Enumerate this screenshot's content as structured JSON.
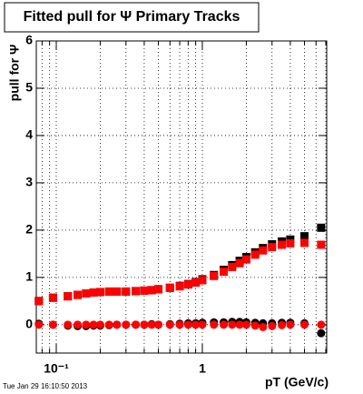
{
  "chart_data": {
    "type": "scatter",
    "title": "Fitted pull for Ψ  Primary Tracks",
    "ylabel": "pull for Ψ",
    "xlabel": "pT (GeV/c)",
    "timestamp": "Tue Jan 29 16:10:50 2013",
    "xlog": true,
    "grid": true,
    "xlim": [
      0.073,
      7.1
    ],
    "ylim": [
      -0.6,
      6
    ],
    "xticks": [
      {
        "value": 0.1,
        "label": "10⁻¹"
      },
      1
    ],
    "yticks": [
      0,
      1,
      2,
      3,
      4,
      5,
      6
    ],
    "x": [
      0.076,
      0.095,
      0.12,
      0.14,
      0.16,
      0.18,
      0.2,
      0.23,
      0.26,
      0.3,
      0.35,
      0.4,
      0.45,
      0.5,
      0.6,
      0.7,
      0.8,
      0.9,
      1.0,
      1.2,
      1.4,
      1.6,
      1.8,
      2.0,
      2.3,
      2.6,
      3.0,
      3.5,
      4.0,
      5.0,
      6.5
    ],
    "series": [
      {
        "color": "#000000",
        "marker": "square",
        "values": [
          0.5,
          0.57,
          0.6,
          0.63,
          0.66,
          0.68,
          0.69,
          0.7,
          0.7,
          0.7,
          0.71,
          0.72,
          0.73,
          0.75,
          0.78,
          0.82,
          0.86,
          0.9,
          0.96,
          1.05,
          1.16,
          1.26,
          1.35,
          1.43,
          1.53,
          1.62,
          1.7,
          1.76,
          1.8,
          1.87,
          2.05
        ]
      },
      {
        "color": "#ff0000",
        "marker": "square",
        "values": [
          0.5,
          0.57,
          0.6,
          0.63,
          0.66,
          0.68,
          0.69,
          0.7,
          0.7,
          0.7,
          0.71,
          0.72,
          0.73,
          0.75,
          0.78,
          0.81,
          0.85,
          0.89,
          0.94,
          1.03,
          1.12,
          1.22,
          1.3,
          1.38,
          1.48,
          1.57,
          1.64,
          1.69,
          1.72,
          1.73,
          1.69
        ]
      },
      {
        "color": "#000000",
        "marker": "circle",
        "values": [
          0.02,
          0,
          -0.02,
          -0.03,
          -0.03,
          -0.02,
          -0.02,
          -0.01,
          0,
          0,
          0,
          0,
          0.01,
          0,
          0.01,
          0.02,
          0.03,
          0.03,
          0.04,
          0.05,
          0.05,
          0.06,
          0.06,
          0.05,
          0.04,
          0.03,
          0.03,
          0.04,
          0.04,
          0.03,
          -0.18
        ]
      },
      {
        "color": "#ff0000",
        "marker": "circle",
        "values": [
          0,
          0,
          0,
          0,
          0,
          0,
          0,
          0,
          0,
          0,
          0,
          0,
          0,
          0,
          0,
          0,
          0,
          0,
          0,
          0,
          0,
          0,
          0,
          0,
          -0.02,
          -0.05,
          -0.03,
          -0.01,
          0,
          0,
          0
        ]
      }
    ]
  }
}
